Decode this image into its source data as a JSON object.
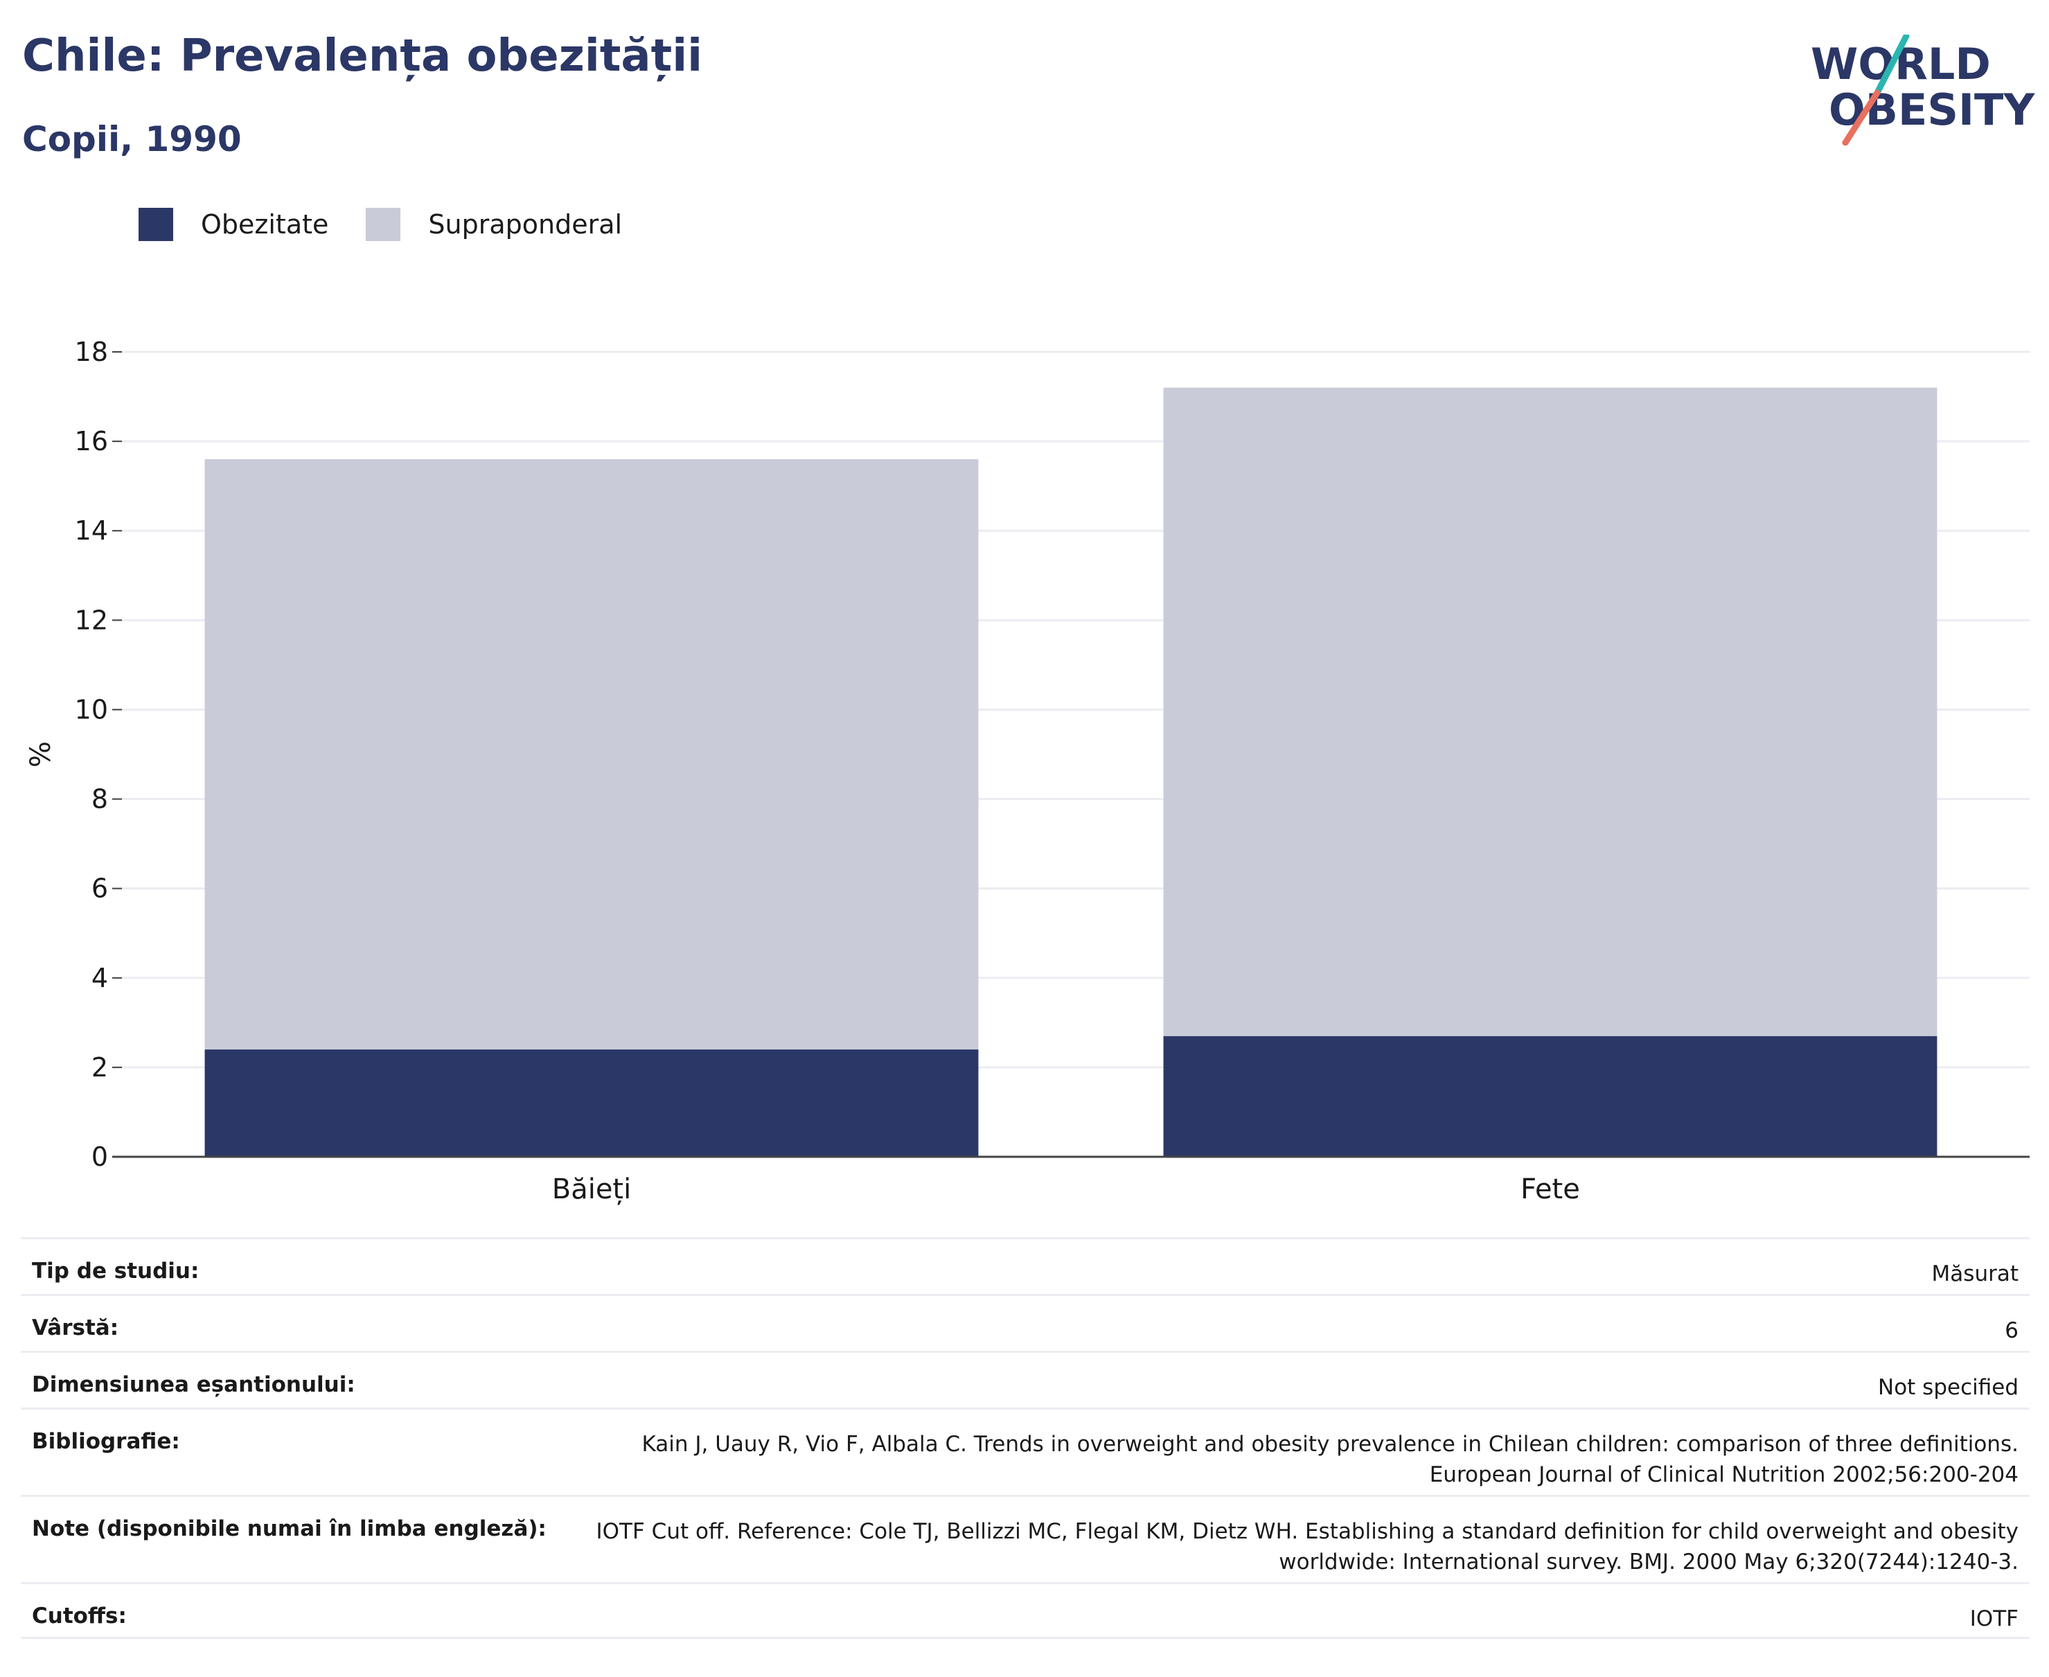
{
  "header": {
    "title": "Chile: Prevalența obezității",
    "subtitle": "Copii, 1990"
  },
  "logo": {
    "line1": "WORLD",
    "line2": "OBESITY"
  },
  "legend": [
    {
      "label": "Obezitate",
      "color": "#2b3766"
    },
    {
      "label": "Supraponderal",
      "color": "#c9ccd8"
    }
  ],
  "chart_data": {
    "type": "bar",
    "stacked": true,
    "categories": [
      "Băieți",
      "Fete"
    ],
    "series": [
      {
        "name": "Obezitate",
        "values": [
          2.4,
          2.7
        ],
        "color": "#2b3766"
      },
      {
        "name": "Supraponderal",
        "values": [
          13.2,
          14.5
        ],
        "color": "#c9ccd8"
      }
    ],
    "ylabel": "%",
    "ylim": [
      0,
      18
    ],
    "yticks": [
      0,
      2,
      4,
      6,
      8,
      10,
      12,
      14,
      16,
      18
    ],
    "grid": true
  },
  "meta": [
    {
      "label": "Tip de studiu:",
      "value": "Măsurat"
    },
    {
      "label": "Vârstă:",
      "value": "6"
    },
    {
      "label": "Dimensiunea eșantionului:",
      "value": "Not specified"
    },
    {
      "label": "Bibliografie:",
      "value": "Kain J, Uauy R, Vio F, Albala C. Trends in overweight and obesity prevalence in Chilean children: comparison of three definitions. European Journal of Clinical Nutrition 2002;56:200-204"
    },
    {
      "label": "Note (disponibile numai în limba engleză):",
      "value": "IOTF Cut off. Reference: Cole TJ, Bellizzi MC, Flegal KM, Dietz WH. Establishing a standard definition for child overweight and obesity worldwide: International survey. BMJ. 2000 May 6;320(7244):1240-3."
    },
    {
      "label": "Cutoffs:",
      "value": "IOTF"
    }
  ]
}
